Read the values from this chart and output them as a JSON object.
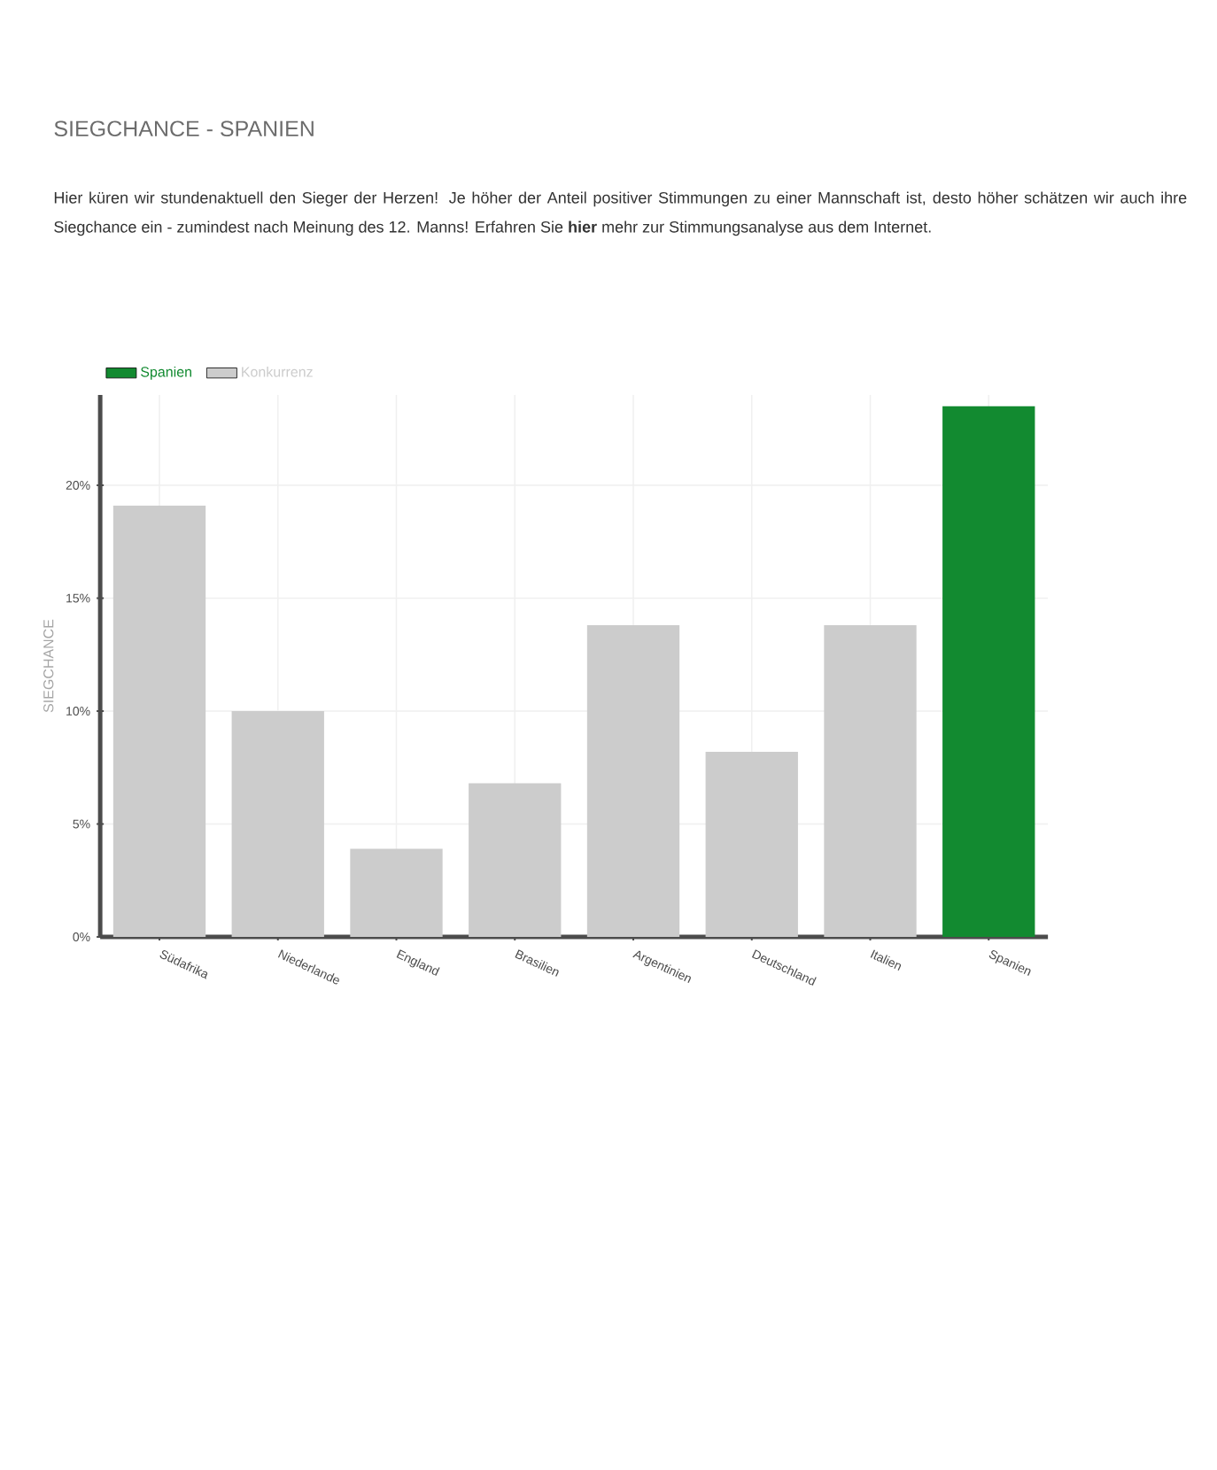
{
  "chart_data": {
    "type": "bar",
    "title": "SIEGCHANCE - SPANIEN",
    "subtitle": "Hier küren wir stundenaktuell den Sieger der Herzen! Je höher der Anteil positiver Stimmungen zu einer Mannschaft ist, desto höher schätzen wir auch ihre Siegchance ein - zumindest nach Meinung des 12. Manns! Erfahren Sie **hier** mehr zur Stimmungsanalyse aus dem Internet.",
    "ylabel": "SIEGCHANCE",
    "categories": [
      "Südafrika",
      "Niederlande",
      "England",
      "Brasilien",
      "Argentinien",
      "Deutschland",
      "Italien",
      "Spanien"
    ],
    "series": [
      {
        "name": "Spanien",
        "color": "#128a30",
        "values": [
          null,
          null,
          null,
          null,
          null,
          null,
          null,
          23.5
        ]
      },
      {
        "name": "Konkurrenz",
        "color": "#cccccc",
        "values": [
          19.1,
          10.0,
          3.9,
          6.8,
          13.8,
          8.2,
          13.8,
          null
        ]
      }
    ],
    "ylim": [
      0,
      24
    ],
    "yticks": [
      {
        "value": 0,
        "label": "0%"
      },
      {
        "value": 5,
        "label": "5%"
      },
      {
        "value": 10,
        "label": "10%"
      },
      {
        "value": 15,
        "label": "15%"
      },
      {
        "value": 20,
        "label": "20%"
      }
    ],
    "grid": true,
    "legend": "top left"
  }
}
